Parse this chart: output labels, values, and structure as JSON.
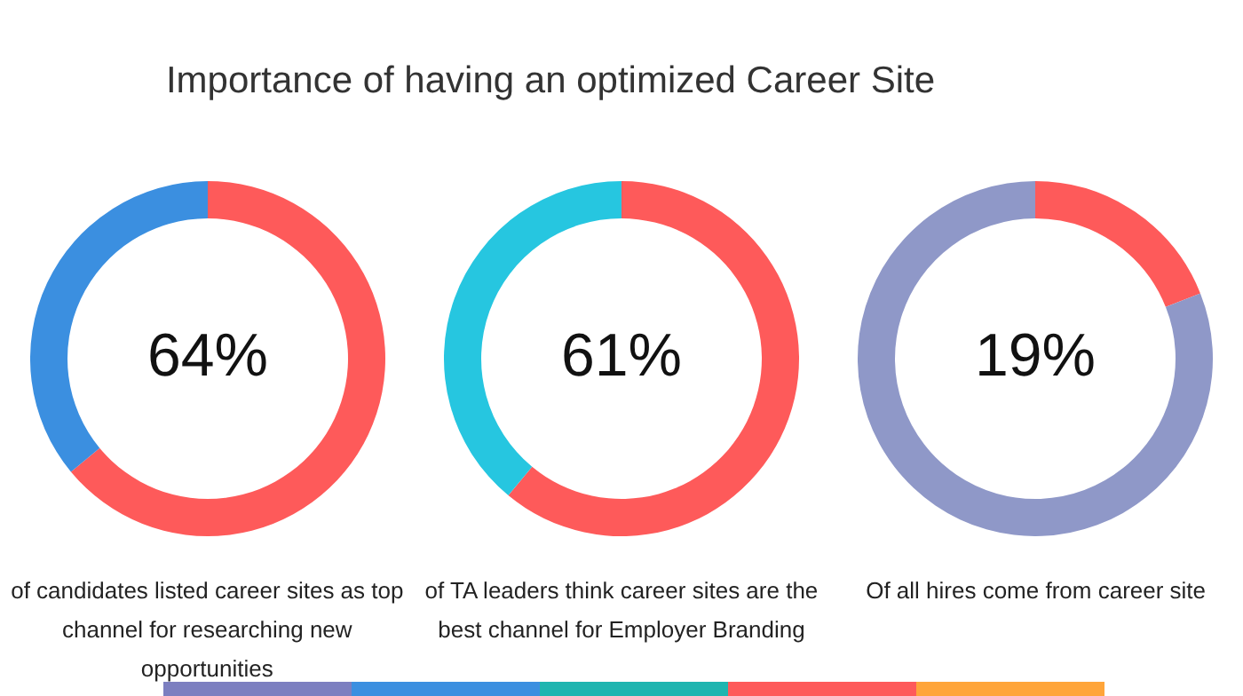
{
  "chart_data": [
    {
      "type": "donut",
      "title": "Importance of having an optimized Career Site",
      "categories": [
        null,
        null
      ],
      "values": [
        64,
        36
      ],
      "colors": [
        "#fe5a5a",
        "#3b8fe0"
      ],
      "value_labels": [
        "64%",
        null
      ],
      "legend": false,
      "annotations": [
        "of candidates listed career sites as top channel for researching new opportunities"
      ]
    },
    {
      "type": "donut",
      "categories": [
        null,
        null
      ],
      "values": [
        61,
        39
      ],
      "colors": [
        "#fe5a5a",
        "#26c6e0"
      ],
      "value_labels": [
        "61%",
        null
      ],
      "legend": false,
      "annotations": [
        "of TA leaders think career sites are the best channel for Employer Branding"
      ]
    },
    {
      "type": "donut",
      "categories": [
        null,
        null
      ],
      "values": [
        19,
        81
      ],
      "colors": [
        "#fe5a5a",
        "#8f98c8"
      ],
      "value_labels": [
        "19%",
        null
      ],
      "legend": false,
      "annotations": [
        "Of all hires come from career site"
      ]
    }
  ]
}
